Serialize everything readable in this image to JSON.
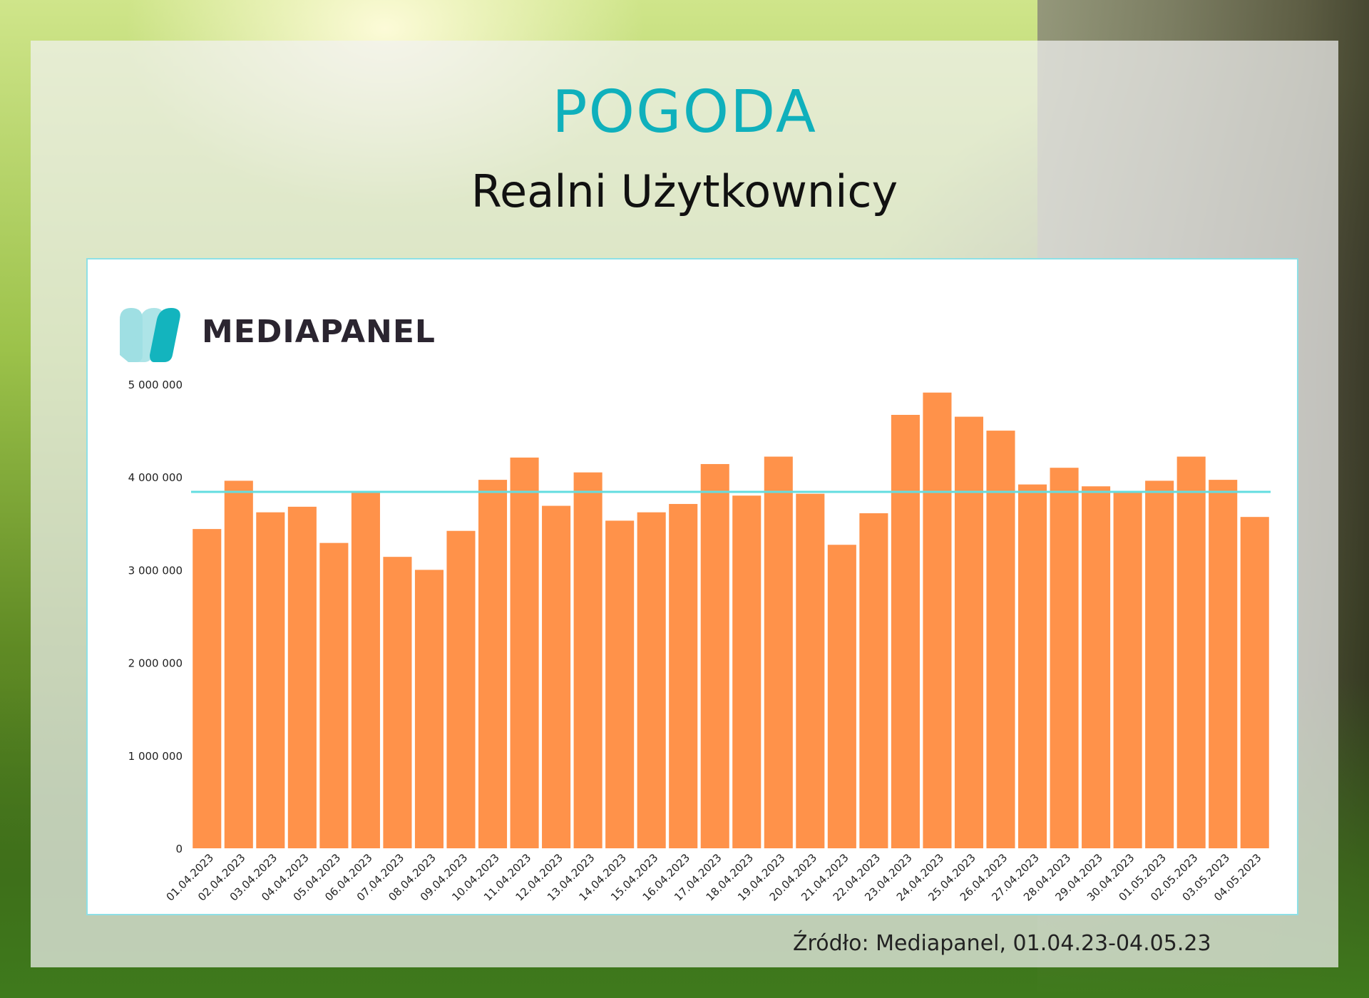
{
  "header": {
    "title": "POGODA",
    "subtitle": "Realni Użytkownicy"
  },
  "logo": {
    "text": "MEDIAPANEL"
  },
  "source": "Źródło: Mediapanel, 01.04.23-04.05.23",
  "colors": {
    "title": "#0fb0bc",
    "bar": "#ff924a",
    "average_line": "#63dde0",
    "logo_light": "#9fdfe3",
    "logo_dark": "#13b4be"
  },
  "chart_data": {
    "type": "bar",
    "title": "",
    "xlabel": "",
    "ylabel": "",
    "ylim": [
      0,
      5000000
    ],
    "yticks": [
      0,
      1000000,
      2000000,
      3000000,
      4000000,
      5000000
    ],
    "ytick_labels": [
      "0",
      "1 000 000",
      "2 000 000",
      "3 000 000",
      "4 000 000",
      "5 000 000"
    ],
    "categories": [
      "01.04.2023",
      "02.04.2023",
      "03.04.2023",
      "04.04.2023",
      "05.04.2023",
      "06.04.2023",
      "07.04.2023",
      "08.04.2023",
      "09.04.2023",
      "10.04.2023",
      "11.04.2023",
      "12.04.2023",
      "13.04.2023",
      "14.04.2023",
      "15.04.2023",
      "16.04.2023",
      "17.04.2023",
      "18.04.2023",
      "19.04.2023",
      "20.04.2023",
      "21.04.2023",
      "22.04.2023",
      "23.04.2023",
      "24.04.2023",
      "25.04.2023",
      "26.04.2023",
      "27.04.2023",
      "28.04.2023",
      "29.04.2023",
      "30.04.2023",
      "01.05.2023",
      "02.05.2023",
      "03.05.2023",
      "04.05.2023"
    ],
    "values": [
      3440000,
      3960000,
      3620000,
      3680000,
      3290000,
      3850000,
      3140000,
      3000000,
      3420000,
      3970000,
      4210000,
      3690000,
      4050000,
      3530000,
      3620000,
      3710000,
      4140000,
      3800000,
      4220000,
      3820000,
      3270000,
      3610000,
      4670000,
      4910000,
      4650000,
      4500000,
      3920000,
      4100000,
      3900000,
      3830000,
      3960000,
      4220000,
      3970000,
      3570000
    ],
    "reference_line": 3840000,
    "grid": false,
    "legend": "none"
  }
}
